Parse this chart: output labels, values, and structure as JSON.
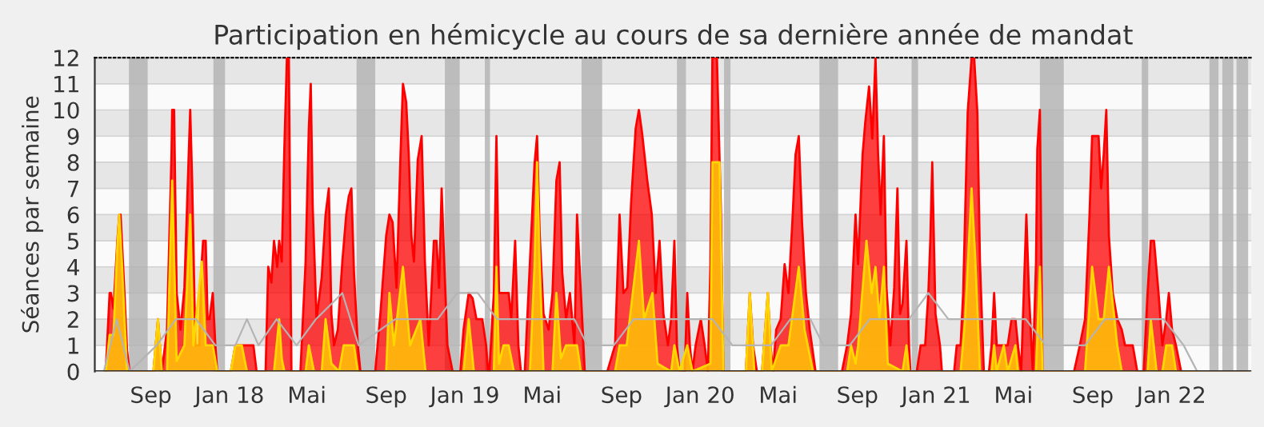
{
  "chart_data": {
    "type": "area",
    "title": "Participation en hémicycle au cours de sa dernière année de mandat",
    "ylabel": "Séances par semaine",
    "xlim": [
      "2017-06-06",
      "2022-05-05"
    ],
    "xticks": [
      {
        "value": "2017-09-01",
        "label": "Sep"
      },
      {
        "value": "2018-01-01",
        "label": "Jan 18"
      },
      {
        "value": "2018-05-01",
        "label": "Mai"
      },
      {
        "value": "2018-09-01",
        "label": "Sep"
      },
      {
        "value": "2019-01-01",
        "label": "Jan 19"
      },
      {
        "value": "2019-05-01",
        "label": "Mai"
      },
      {
        "value": "2019-09-01",
        "label": "Sep"
      },
      {
        "value": "2020-01-01",
        "label": "Jan 20"
      },
      {
        "value": "2020-05-01",
        "label": "Mai"
      },
      {
        "value": "2020-09-01",
        "label": "Sep"
      },
      {
        "value": "2021-01-01",
        "label": "Jan 21"
      },
      {
        "value": "2021-05-01",
        "label": "Mai"
      },
      {
        "value": "2021-09-01",
        "label": "Sep"
      },
      {
        "value": "2022-01-01",
        "label": "Jan 22"
      }
    ],
    "ylim": [
      0,
      12
    ],
    "yticks": [
      0,
      1,
      2,
      3,
      4,
      5,
      6,
      7,
      8,
      9,
      10,
      11,
      12
    ],
    "grid": "y",
    "bands": [
      {
        "axis": "x",
        "from": "2017-07-29",
        "to": "2017-08-27",
        "color": "#b4b4b4"
      },
      {
        "axis": "x",
        "from": "2017-12-07",
        "to": "2017-12-25",
        "color": "#b4b4b4"
      },
      {
        "axis": "x",
        "from": "2018-07-17",
        "to": "2018-08-15",
        "color": "#b4b4b4"
      },
      {
        "axis": "x",
        "from": "2018-12-01",
        "to": "2018-12-24",
        "color": "#b4b4b4"
      },
      {
        "axis": "x",
        "from": "2019-02-01",
        "to": "2019-02-09",
        "color": "#b4b4b4"
      },
      {
        "axis": "x",
        "from": "2019-07-01",
        "to": "2019-08-02",
        "color": "#b4b4b4"
      },
      {
        "axis": "x",
        "from": "2019-11-26",
        "to": "2019-12-10",
        "color": "#b4b4b4"
      },
      {
        "axis": "x",
        "from": "2020-02-07",
        "to": "2020-02-17",
        "color": "#b4b4b4"
      },
      {
        "axis": "x",
        "from": "2020-07-04",
        "to": "2020-08-02",
        "color": "#b4b4b4"
      },
      {
        "axis": "x",
        "from": "2020-11-24",
        "to": "2020-12-04",
        "color": "#b4b4b4"
      },
      {
        "axis": "x",
        "from": "2021-06-11",
        "to": "2021-07-18",
        "color": "#b4b4b4"
      },
      {
        "axis": "x",
        "from": "2021-11-16",
        "to": "2021-11-26",
        "color": "#b4b4b4"
      },
      {
        "axis": "x",
        "from": "2022-03-01",
        "to": "2022-03-15",
        "color": "#b4b4b4"
      },
      {
        "axis": "x",
        "from": "2022-03-21",
        "to": "2022-04-07",
        "color": "#b4b4b4"
      },
      {
        "axis": "x",
        "from": "2022-04-12",
        "to": "2022-04-30",
        "color": "#b4b4b4"
      }
    ],
    "series": [
      {
        "type": "line",
        "color": "#b4b4b4",
        "x": [
          "2017-06-20",
          "2017-07-10",
          "2017-07-30",
          "2017-09-10",
          "2017-10-10",
          "2017-11-10",
          "2017-12-10",
          "2018-01-10",
          "2018-01-28",
          "2018-02-15",
          "2018-03-15",
          "2018-04-15",
          "2018-05-15",
          "2018-06-25",
          "2018-07-20",
          "2018-09-15",
          "2018-10-15",
          "2018-11-20",
          "2018-12-20",
          "2019-01-21",
          "2019-02-20",
          "2019-03-20",
          "2019-04-20",
          "2019-05-20",
          "2019-06-20",
          "2019-07-10",
          "2019-08-20",
          "2019-09-20",
          "2019-10-20",
          "2019-11-20",
          "2019-12-20",
          "2020-01-20",
          "2020-02-20",
          "2020-03-20",
          "2020-04-20",
          "2020-05-20",
          "2020-06-20",
          "2020-07-10",
          "2020-08-20",
          "2020-09-20",
          "2020-10-20",
          "2020-11-20",
          "2020-12-20",
          "2021-01-20",
          "2021-02-20",
          "2021-03-20",
          "2021-04-20",
          "2021-05-20",
          "2021-06-20",
          "2021-07-20",
          "2021-08-20",
          "2021-09-20",
          "2021-10-20",
          "2021-11-20",
          "2021-12-20",
          "2022-01-20",
          "2022-02-10",
          "2022-05-01"
        ],
        "values": [
          0,
          2,
          0,
          1,
          2,
          2,
          1,
          1,
          2,
          1,
          2,
          1,
          2,
          3,
          1,
          2,
          2,
          2,
          3,
          3,
          2,
          2,
          2,
          2,
          2,
          1,
          1,
          2,
          2,
          2,
          2,
          2,
          1,
          1,
          1,
          2,
          2,
          1,
          1,
          2,
          2,
          2,
          3,
          2,
          2,
          2,
          2,
          2,
          1,
          1,
          1,
          2,
          2,
          2,
          2,
          1,
          0,
          0
        ]
      },
      {
        "type": "area",
        "color": "#ff0000",
        "x": [
          "2017-06-23",
          "2017-06-29",
          "2017-07-01",
          "2017-07-05",
          "2017-07-11",
          "2017-07-14",
          "2017-07-16",
          "2017-07-22",
          "2017-07-26",
          "2017-07-30",
          "2017-09-05",
          "2017-09-12",
          "2017-09-18",
          "2017-09-26",
          "2017-10-03",
          "2017-10-04",
          "2017-10-07",
          "2017-10-11",
          "2017-10-17",
          "2017-10-23",
          "2017-10-28",
          "2017-11-01",
          "2017-11-04",
          "2017-11-09",
          "2017-11-15",
          "2017-11-19",
          "2017-11-21",
          "2017-11-25",
          "2017-11-28",
          "2017-12-01",
          "2017-12-06",
          "2017-12-10",
          "2017-12-13",
          "2018-01-03",
          "2018-01-10",
          "2018-02-07",
          "2018-02-12",
          "2018-02-26",
          "2018-03-02",
          "2018-03-07",
          "2018-03-11",
          "2018-03-16",
          "2018-03-19",
          "2018-03-23",
          "2018-03-27",
          "2018-03-31",
          "2018-04-03",
          "2018-04-07",
          "2018-04-21",
          "2018-04-29",
          "2018-05-04",
          "2018-05-07",
          "2018-05-10",
          "2018-05-16",
          "2018-05-24",
          "2018-05-30",
          "2018-06-04",
          "2018-06-08",
          "2018-06-12",
          "2018-06-18",
          "2018-06-25",
          "2018-07-01",
          "2018-07-05",
          "2018-07-09",
          "2018-07-13",
          "2018-07-19",
          "2018-07-23",
          "2018-08-15",
          "2018-08-23",
          "2018-09-01",
          "2018-09-06",
          "2018-09-11",
          "2018-09-17",
          "2018-09-23",
          "2018-09-27",
          "2018-10-02",
          "2018-10-06",
          "2018-10-10",
          "2018-10-14",
          "2018-10-20",
          "2018-10-26",
          "2018-10-31",
          "2018-11-06",
          "2018-11-14",
          "2018-11-18",
          "2018-11-22",
          "2018-11-26",
          "2018-11-30",
          "2018-12-05",
          "2018-12-13",
          "2018-12-25",
          "2018-12-30",
          "2019-01-07",
          "2019-01-13",
          "2019-01-19",
          "2019-01-28",
          "2019-02-03",
          "2019-02-06",
          "2019-02-08",
          "2019-02-15",
          "2019-02-19",
          "2019-02-23",
          "2019-03-10",
          "2019-03-14",
          "2019-03-20",
          "2019-03-25",
          "2019-03-29",
          "2019-04-04",
          "2019-04-12",
          "2019-04-19",
          "2019-04-23",
          "2019-04-27",
          "2019-05-03",
          "2019-05-11",
          "2019-05-17",
          "2019-05-23",
          "2019-05-28",
          "2019-06-01",
          "2019-06-07",
          "2019-06-13",
          "2019-06-20",
          "2019-06-24",
          "2019-06-30",
          "2019-07-06",
          "2019-08-10",
          "2019-08-22",
          "2019-08-29",
          "2019-09-04",
          "2019-09-10",
          "2019-09-16",
          "2019-09-23",
          "2019-09-28",
          "2019-10-03",
          "2019-10-11",
          "2019-10-18",
          "2019-10-24",
          "2019-10-30",
          "2019-11-05",
          "2019-11-12",
          "2019-11-17",
          "2019-11-22",
          "2019-11-26",
          "2019-11-30",
          "2019-12-08",
          "2019-12-12",
          "2019-12-16",
          "2019-12-20",
          "2019-12-25",
          "2020-01-02",
          "2020-01-08",
          "2020-01-13",
          "2020-01-17",
          "2020-01-20",
          "2020-01-27",
          "2020-02-02",
          "2020-02-06",
          "2020-03-12",
          "2020-03-18",
          "2020-03-23",
          "2020-03-29",
          "2020-04-06",
          "2020-04-15",
          "2020-04-19",
          "2020-04-23",
          "2020-04-28",
          "2020-05-05",
          "2020-05-11",
          "2020-05-17",
          "2020-05-23",
          "2020-05-28",
          "2020-06-02",
          "2020-06-07",
          "2020-06-13",
          "2020-06-19",
          "2020-06-28",
          "2020-08-08",
          "2020-08-16",
          "2020-08-22",
          "2020-08-29",
          "2020-09-02",
          "2020-09-09",
          "2020-09-13",
          "2020-09-19",
          "2020-09-24",
          "2020-09-29",
          "2020-10-03",
          "2020-10-07",
          "2020-10-12",
          "2020-10-16",
          "2020-10-22",
          "2020-10-28",
          "2020-11-02",
          "2020-11-06",
          "2020-11-10",
          "2020-11-16",
          "2020-11-20",
          "2020-11-22",
          "2020-12-02",
          "2020-12-08",
          "2020-12-15",
          "2020-12-20",
          "2020-12-23",
          "2020-12-26",
          "2020-12-31",
          "2021-01-07",
          "2021-01-10",
          "2021-01-29",
          "2021-02-02",
          "2021-02-08",
          "2021-02-12",
          "2021-02-19",
          "2021-02-25",
          "2021-03-01",
          "2021-03-06",
          "2021-03-10",
          "2021-03-16",
          "2021-03-24",
          "2021-03-28",
          "2021-04-01",
          "2021-04-05",
          "2021-04-22",
          "2021-04-28",
          "2021-05-04",
          "2021-05-08",
          "2021-05-13",
          "2021-05-17",
          "2021-05-21",
          "2021-05-25",
          "2021-05-31",
          "2021-06-05",
          "2021-06-07",
          "2021-06-11",
          "2021-06-15",
          "2021-08-03",
          "2021-08-12",
          "2021-08-20",
          "2021-08-27",
          "2021-08-31",
          "2021-09-10",
          "2021-09-14",
          "2021-09-18",
          "2021-09-22",
          "2021-09-26",
          "2021-10-02",
          "2021-10-09",
          "2021-10-16",
          "2021-10-21",
          "2021-11-02",
          "2021-11-09",
          "2021-11-19",
          "2021-11-25",
          "2021-11-30",
          "2021-12-05",
          "2021-12-12",
          "2021-12-18",
          "2021-12-24",
          "2021-12-28",
          "2022-01-02",
          "2022-01-08",
          "2022-01-16",
          "2022-05-01"
        ],
        "values": [
          0,
          3,
          3,
          2.4,
          5,
          6,
          6,
          3,
          0.8,
          0,
          0,
          2,
          0,
          1.6,
          8.3,
          10,
          10,
          3,
          1.6,
          3.2,
          7,
          10,
          7.3,
          1,
          1,
          4.2,
          5,
          5,
          2,
          2,
          3,
          1,
          0,
          0,
          1,
          1,
          0,
          0,
          4,
          3.4,
          5,
          4,
          5,
          4.2,
          8.5,
          12,
          12,
          0,
          0,
          4.2,
          9.3,
          11,
          6.3,
          2,
          3.6,
          6,
          7,
          2.2,
          1,
          1.6,
          4.2,
          6,
          6.7,
          7,
          3.8,
          1,
          0,
          0,
          2.2,
          5.2,
          6,
          5.7,
          3.2,
          8.1,
          11,
          10.3,
          8.3,
          5.2,
          4.2,
          8.1,
          9,
          4.2,
          1,
          5,
          5,
          3.2,
          7,
          4.2,
          1,
          0,
          0,
          1.6,
          3,
          2.8,
          2,
          2,
          1,
          0,
          0,
          3,
          9,
          3,
          3,
          2,
          5,
          1,
          0,
          0,
          4.2,
          7.9,
          9,
          5.3,
          2.2,
          1.6,
          3,
          7.3,
          8,
          3.8,
          2,
          3,
          1,
          6,
          3,
          0,
          0,
          1,
          6,
          3,
          3.2,
          6.5,
          9.3,
          10,
          9.1,
          7.3,
          6,
          3,
          5,
          2.2,
          1,
          2,
          5,
          1,
          0,
          0,
          3,
          1,
          0,
          1,
          2,
          1,
          0,
          4.1,
          12,
          12,
          6.3,
          0,
          0,
          3,
          1,
          0,
          0,
          3,
          1,
          0,
          1.6,
          2,
          4.1,
          3,
          5.7,
          8.3,
          9,
          5.7,
          3,
          1.6,
          0,
          0,
          1,
          2.2,
          6,
          4.1,
          8.3,
          9.5,
          10.9,
          8.9,
          12,
          8.3,
          6,
          9,
          3.2,
          1,
          3.2,
          7,
          2.2,
          2.6,
          5,
          1,
          0,
          0,
          1,
          1,
          3,
          5,
          8,
          2.2,
          1,
          0,
          0,
          1,
          1,
          3,
          9.9,
          12,
          12,
          9.9,
          4.2,
          0,
          0,
          1,
          3,
          1,
          1,
          2,
          2,
          1,
          0,
          3,
          6,
          3,
          0,
          4.2,
          8.5,
          10,
          0,
          0,
          1,
          2,
          6,
          9,
          9,
          7,
          8.3,
          10,
          5.2,
          3,
          2,
          1.6,
          1,
          1,
          0,
          0,
          3,
          5,
          5,
          3,
          1,
          2,
          3,
          1.6,
          1,
          0,
          0
        ]
      },
      {
        "type": "area",
        "color": "#ffd700",
        "x": [
          "2017-06-23",
          "2017-06-29",
          "2017-07-05",
          "2017-07-11",
          "2017-07-14",
          "2017-07-18",
          "2017-07-26",
          "2017-09-05",
          "2017-09-12",
          "2017-09-18",
          "2017-09-26",
          "2017-10-04",
          "2017-10-11",
          "2017-10-23",
          "2017-11-01",
          "2017-11-06",
          "2017-11-19",
          "2017-11-25",
          "2017-12-06",
          "2017-12-13",
          "2018-01-03",
          "2018-01-10",
          "2018-01-20",
          "2018-01-28",
          "2018-03-11",
          "2018-03-19",
          "2018-03-23",
          "2018-03-27",
          "2018-04-29",
          "2018-05-04",
          "2018-05-12",
          "2018-05-24",
          "2018-05-30",
          "2018-06-08",
          "2018-06-20",
          "2018-06-27",
          "2018-07-13",
          "2018-07-19",
          "2018-09-01",
          "2018-09-06",
          "2018-09-13",
          "2018-09-27",
          "2018-10-08",
          "2018-10-24",
          "2018-11-01",
          "2018-12-30",
          "2019-01-07",
          "2019-01-15",
          "2019-02-15",
          "2019-02-19",
          "2019-02-23",
          "2019-03-02",
          "2019-03-10",
          "2019-03-18",
          "2019-04-12",
          "2019-04-19",
          "2019-04-23",
          "2019-04-27",
          "2019-05-03",
          "2019-05-17",
          "2019-05-23",
          "2019-05-30",
          "2019-06-07",
          "2019-06-24",
          "2019-06-30",
          "2019-08-22",
          "2019-08-29",
          "2019-09-09",
          "2019-09-28",
          "2019-10-06",
          "2019-10-19",
          "2019-10-27",
          "2019-11-17",
          "2019-11-22",
          "2019-11-30",
          "2019-12-12",
          "2019-12-20",
          "2020-01-17",
          "2020-01-20",
          "2020-01-31",
          "2020-02-06",
          "2020-03-12",
          "2020-03-18",
          "2020-03-25",
          "2020-04-06",
          "2020-04-15",
          "2020-04-21",
          "2020-05-05",
          "2020-05-17",
          "2020-06-02",
          "2020-06-11",
          "2020-06-24",
          "2020-08-16",
          "2020-08-22",
          "2020-08-29",
          "2020-09-02",
          "2020-09-15",
          "2020-09-23",
          "2020-09-29",
          "2020-10-05",
          "2020-10-12",
          "2020-10-18",
          "2020-11-10",
          "2020-11-16",
          "2020-11-20",
          "2021-02-08",
          "2021-02-15",
          "2021-02-25",
          "2021-03-03",
          "2021-03-10",
          "2021-03-28",
          "2021-04-01",
          "2021-04-05",
          "2021-04-16",
          "2021-04-22",
          "2021-05-04",
          "2021-05-08",
          "2021-06-05",
          "2021-06-11",
          "2021-06-15",
          "2021-08-20",
          "2021-08-31",
          "2021-09-10",
          "2021-09-18",
          "2021-09-26",
          "2021-10-09",
          "2021-10-16",
          "2021-11-25",
          "2021-11-30",
          "2021-12-09",
          "2021-12-18",
          "2021-12-24",
          "2022-01-02",
          "2022-01-08",
          "2022-05-01"
        ],
        "values": [
          0,
          1.4,
          1.4,
          4.8,
          6,
          4.2,
          0,
          0,
          2,
          0,
          0,
          7.3,
          0.4,
          1,
          6,
          1,
          4.2,
          1,
          1,
          0,
          0,
          1,
          1,
          0,
          0,
          2,
          0.5,
          0,
          0,
          1,
          0,
          0,
          2,
          0.3,
          0,
          1,
          1,
          0,
          0,
          3,
          1,
          4,
          1,
          2,
          0,
          0,
          2,
          0,
          0,
          4,
          0.3,
          1,
          1,
          0,
          0,
          4,
          8,
          4.2,
          0,
          0,
          3,
          0.5,
          1,
          1,
          0,
          0,
          1,
          1,
          5,
          2,
          3,
          0.3,
          0,
          1,
          0,
          1,
          0,
          0.3,
          8,
          8,
          0,
          0,
          3,
          0,
          0,
          3,
          0,
          1,
          1,
          4,
          1.6,
          0,
          0,
          1,
          0.3,
          1,
          5,
          3,
          4,
          2,
          4,
          0.3,
          0,
          1,
          0,
          0,
          2,
          7,
          4.2,
          0,
          0,
          1,
          0,
          1,
          0,
          1,
          0,
          0,
          4,
          0,
          0,
          4,
          2,
          2,
          4,
          1,
          0,
          0,
          2,
          0,
          0,
          1,
          1,
          0,
          0
        ]
      }
    ]
  }
}
